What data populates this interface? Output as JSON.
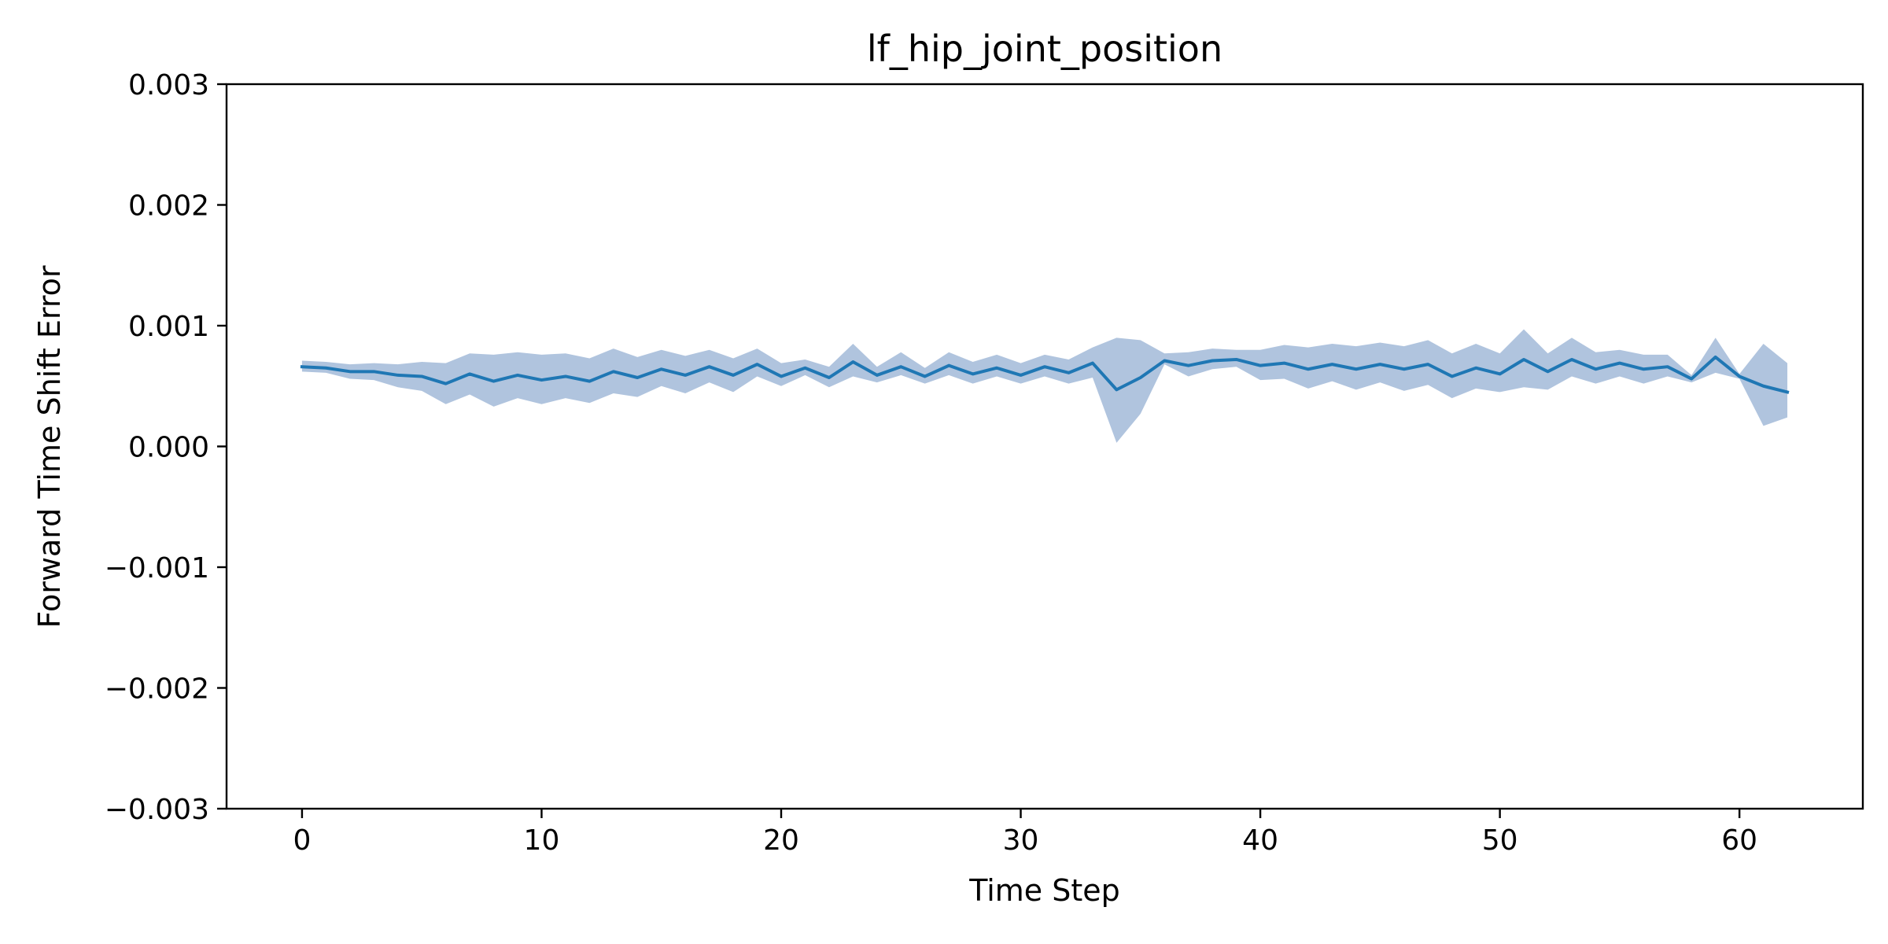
{
  "chart_data": {
    "type": "line",
    "title": "lf_hip_joint_position",
    "xlabel": "Time Step",
    "ylabel": "Forward Time Shift Error",
    "xlim": [
      -3.15,
      65.15
    ],
    "ylim": [
      -0.003,
      0.003
    ],
    "grid": false,
    "x_ticks": [
      0,
      10,
      20,
      30,
      40,
      50,
      60
    ],
    "x_tick_labels": [
      "0",
      "10",
      "20",
      "30",
      "40",
      "50",
      "60"
    ],
    "y_ticks": [
      0.003,
      0.002,
      0.001,
      0.0,
      -0.001,
      -0.002,
      -0.003
    ],
    "y_tick_labels": [
      "0.003",
      "0.002",
      "0.001",
      "0.000",
      "−0.001",
      "−0.002",
      "−0.003"
    ],
    "colors": {
      "line": "#1f77b4",
      "band": "#b0c4de",
      "axes": "#000000"
    },
    "series": [
      {
        "x": [
          0,
          1,
          2,
          3,
          4,
          5,
          6,
          7,
          8,
          9,
          10,
          11,
          12,
          13,
          14,
          15,
          16,
          17,
          18,
          19,
          20,
          21,
          22,
          23,
          24,
          25,
          26,
          27,
          28,
          29,
          30,
          31,
          32,
          33,
          34,
          35,
          36,
          37,
          38,
          39,
          40,
          41,
          42,
          43,
          44,
          45,
          46,
          47,
          48,
          49,
          50,
          51,
          52,
          53,
          54,
          55,
          56,
          57,
          58,
          59,
          60,
          61,
          62
        ],
        "mean": [
          0.00066,
          0.00065,
          0.00062,
          0.00062,
          0.00059,
          0.00058,
          0.00052,
          0.0006,
          0.00054,
          0.00059,
          0.00055,
          0.00058,
          0.00054,
          0.00062,
          0.00057,
          0.00064,
          0.00059,
          0.00066,
          0.00059,
          0.00068,
          0.00058,
          0.00065,
          0.00057,
          0.0007,
          0.00059,
          0.00066,
          0.00058,
          0.00067,
          0.0006,
          0.00065,
          0.00059,
          0.00066,
          0.00061,
          0.00069,
          0.00047,
          0.00057,
          0.00071,
          0.00067,
          0.00071,
          0.00072,
          0.00067,
          0.00069,
          0.00064,
          0.00068,
          0.00064,
          0.00068,
          0.00064,
          0.00068,
          0.00058,
          0.00065,
          0.0006,
          0.00072,
          0.00062,
          0.00072,
          0.00064,
          0.00069,
          0.00064,
          0.00066,
          0.00056,
          0.00074,
          0.00058,
          0.0005,
          0.00045
        ],
        "upper": [
          0.00071,
          0.0007,
          0.00068,
          0.00069,
          0.00068,
          0.0007,
          0.00069,
          0.00077,
          0.00076,
          0.00078,
          0.00076,
          0.00077,
          0.00073,
          0.00081,
          0.00074,
          0.0008,
          0.00075,
          0.0008,
          0.00073,
          0.00081,
          0.00069,
          0.00072,
          0.00066,
          0.00085,
          0.00066,
          0.00078,
          0.00065,
          0.00078,
          0.0007,
          0.00076,
          0.00069,
          0.00076,
          0.00072,
          0.00082,
          0.0009,
          0.00088,
          0.00077,
          0.00078,
          0.00081,
          0.0008,
          0.0008,
          0.00084,
          0.00082,
          0.00085,
          0.00083,
          0.00086,
          0.00083,
          0.00088,
          0.00077,
          0.00085,
          0.00077,
          0.00097,
          0.00077,
          0.0009,
          0.00078,
          0.0008,
          0.00076,
          0.00076,
          0.00059,
          0.0009,
          0.0006,
          0.00085,
          0.00069
        ],
        "lower": [
          0.00062,
          0.00061,
          0.00056,
          0.00055,
          0.00049,
          0.00046,
          0.00035,
          0.00043,
          0.00033,
          0.0004,
          0.00035,
          0.0004,
          0.00036,
          0.00044,
          0.00041,
          0.0005,
          0.00044,
          0.00053,
          0.00045,
          0.00058,
          0.0005,
          0.00059,
          0.00049,
          0.00058,
          0.00053,
          0.00059,
          0.00052,
          0.00059,
          0.00052,
          0.00058,
          0.00052,
          0.00058,
          0.00052,
          0.00057,
          3e-05,
          0.00027,
          0.00068,
          0.00058,
          0.00064,
          0.00066,
          0.00055,
          0.00056,
          0.00048,
          0.00054,
          0.00047,
          0.00053,
          0.00046,
          0.00051,
          0.0004,
          0.00048,
          0.00045,
          0.00049,
          0.00047,
          0.00058,
          0.00052,
          0.00058,
          0.00052,
          0.00058,
          0.00053,
          0.00061,
          0.00056,
          0.00017,
          0.00024
        ]
      }
    ]
  }
}
